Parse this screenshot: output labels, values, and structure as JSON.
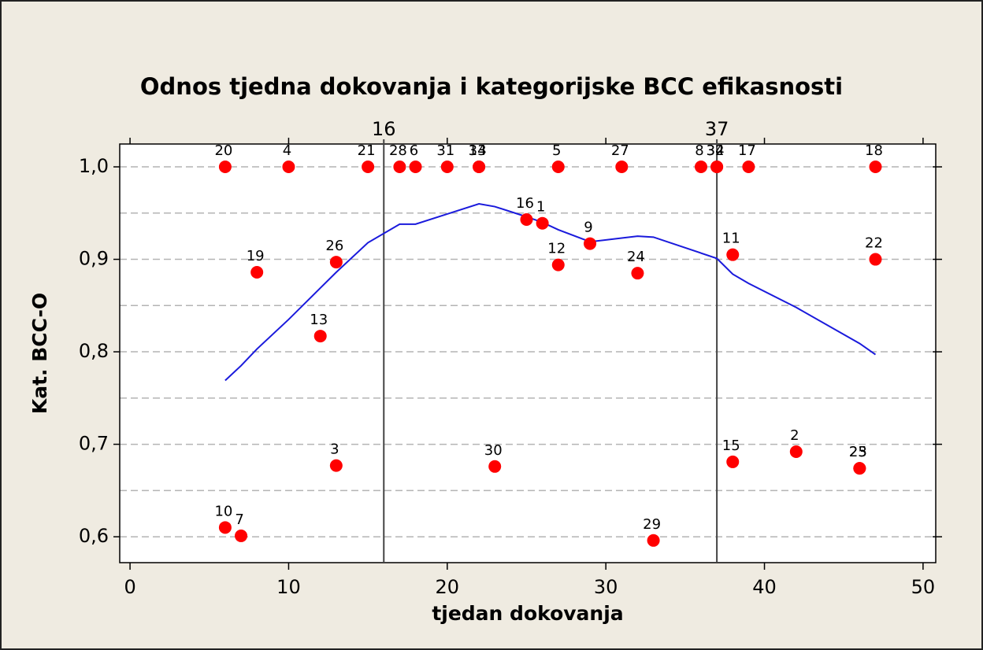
{
  "chart_data": {
    "type": "scatter",
    "title": "Odnos tjedna dokovanja i kategorijske BCC efikasnosti",
    "xlabel": "tjedan dokovanja",
    "ylabel": "Kat. BCC-O",
    "xlim": [
      -0.65,
      50.8
    ],
    "ylim": [
      0.572,
      1.0247
    ],
    "xticks": [
      0,
      10,
      20,
      30,
      40,
      50
    ],
    "yticks": [
      {
        "value": 0.6,
        "label": "0,6"
      },
      {
        "value": 0.7,
        "label": "0,7"
      },
      {
        "value": 0.8,
        "label": "0,8"
      },
      {
        "value": 0.9,
        "label": "0,9"
      },
      {
        "value": 1.0,
        "label": "1,0"
      }
    ],
    "ygrid": [
      0.6,
      0.65,
      0.7,
      0.75,
      0.8,
      0.85,
      0.9,
      0.95,
      1.0
    ],
    "grid": true,
    "reference_lines": [
      16,
      37
    ],
    "points": {
      "color": "#ff0000",
      "labels": [
        "20",
        "4",
        "21",
        "28",
        "6",
        "31",
        "14",
        "33",
        "5",
        "27",
        "8",
        "32",
        "34",
        "17",
        "18",
        "19",
        "26",
        "13",
        "3",
        "10",
        "7",
        "16",
        "1",
        "12",
        "9",
        "24",
        "30",
        "29",
        "11",
        "22",
        "15",
        "2",
        "23",
        "25"
      ],
      "x": [
        6,
        10,
        15,
        17,
        18,
        20,
        22,
        22,
        27,
        31,
        36,
        37,
        37,
        39,
        47,
        8,
        13,
        12,
        13,
        6,
        7,
        25,
        26,
        27,
        29,
        32,
        23,
        33,
        38,
        47,
        38,
        42,
        46,
        46
      ],
      "values": [
        1,
        1,
        1,
        1,
        1,
        1,
        1,
        1,
        1,
        1,
        1,
        1,
        1,
        1,
        1,
        0.886,
        0.897,
        0.817,
        0.677,
        0.61,
        0.601,
        0.943,
        0.939,
        0.894,
        0.917,
        0.885,
        0.676,
        0.596,
        0.905,
        0.9,
        0.681,
        0.692,
        0.674,
        0.674
      ]
    },
    "fit_line": {
      "color": "#1a1adc",
      "x": [
        6,
        7,
        8,
        10,
        12,
        13,
        15,
        17,
        18,
        20,
        22,
        23,
        25,
        26,
        27,
        29,
        31,
        32,
        33,
        37,
        38,
        39,
        42,
        46,
        47
      ],
      "values": [
        0.769,
        0.785,
        0.803,
        0.835,
        0.869,
        0.886,
        0.918,
        0.938,
        0.938,
        0.949,
        0.96,
        0.957,
        0.946,
        0.94,
        0.932,
        0.919,
        0.923,
        0.925,
        0.924,
        0.901,
        0.884,
        0.874,
        0.848,
        0.809,
        0.797
      ]
    }
  }
}
